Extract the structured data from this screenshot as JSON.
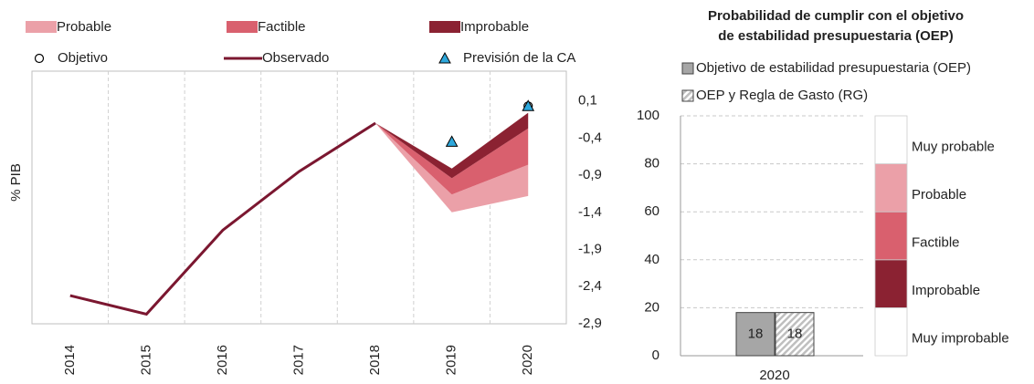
{
  "chart_data": [
    {
      "type": "fan-line",
      "categories": [
        "2014",
        "2015",
        "2016",
        "2017",
        "2018",
        "2019",
        "2020"
      ],
      "y_label": "% PIB",
      "ylim": [
        -2.9,
        0.5
      ],
      "yticks": [
        {
          "value": 0.1,
          "label": "0,1"
        },
        {
          "value": -0.4,
          "label": "-0,4"
        },
        {
          "value": -0.9,
          "label": "-0,9"
        },
        {
          "value": -1.4,
          "label": "-1,4"
        },
        {
          "value": -1.9,
          "label": "-1,9"
        },
        {
          "value": -2.4,
          "label": "-2,4"
        },
        {
          "value": -2.9,
          "label": "-2,9"
        }
      ],
      "grid": true,
      "bands": [
        {
          "name": "Probable",
          "color": "#eba0a8",
          "upper": [
            null,
            null,
            null,
            null,
            -0.2,
            -1.16,
            -0.76
          ],
          "lower": [
            null,
            null,
            null,
            null,
            -0.2,
            -1.4,
            -1.18
          ]
        },
        {
          "name": "Factible",
          "color": "#d9606e",
          "upper": [
            null,
            null,
            null,
            null,
            -0.2,
            -0.94,
            -0.27
          ],
          "lower": [
            null,
            null,
            null,
            null,
            -0.2,
            -1.16,
            -0.76
          ]
        },
        {
          "name": "Improbable",
          "color": "#8b2232",
          "upper": [
            null,
            null,
            null,
            null,
            -0.2,
            -0.81,
            -0.06
          ],
          "lower": [
            null,
            null,
            null,
            null,
            -0.2,
            -0.94,
            -0.27
          ]
        }
      ],
      "series": [
        {
          "name": "Objetivo",
          "marker": "circle",
          "color": "#ffffff",
          "values": [
            null,
            null,
            null,
            null,
            null,
            null,
            0.03
          ]
        },
        {
          "name": "Observado",
          "marker": "line",
          "color": "#7b1730",
          "values": [
            -2.52,
            -2.77,
            -1.64,
            -0.85,
            -0.2,
            null,
            null
          ]
        },
        {
          "name": "Previsión de la CA",
          "marker": "triangle",
          "color": "#2ea8dc",
          "values": [
            null,
            null,
            null,
            null,
            null,
            -0.45,
            0.03
          ]
        }
      ]
    },
    {
      "type": "bar",
      "title": [
        "Probabilidad de cumplir con el objetivo",
        "de estabilidad presupuestaria (OEP)"
      ],
      "categories": [
        "2020"
      ],
      "ylim": [
        0,
        100
      ],
      "yticks": [
        0,
        20,
        40,
        60,
        80,
        100
      ],
      "grid": true,
      "series": [
        {
          "name": "Objetivo de estabilidad presupuestaria (OEP)",
          "color": "#a6a6a6",
          "hatch": false,
          "values": [
            18
          ]
        },
        {
          "name": "OEP y Regla de Gasto (RG)",
          "color": "#bfbfbf",
          "hatch": true,
          "values": [
            18
          ]
        }
      ],
      "probability_bands": [
        {
          "name": "Muy improbable",
          "color": "#ffffff",
          "value": 20
        },
        {
          "name": "Improbable",
          "color": "#8b2232",
          "value": 20
        },
        {
          "name": "Factible",
          "color": "#d9606e",
          "value": 20
        },
        {
          "name": "Probable",
          "color": "#eba0a8",
          "value": 20
        },
        {
          "name": "Muy probable",
          "color": "#ffffff",
          "value": 20
        }
      ]
    }
  ]
}
